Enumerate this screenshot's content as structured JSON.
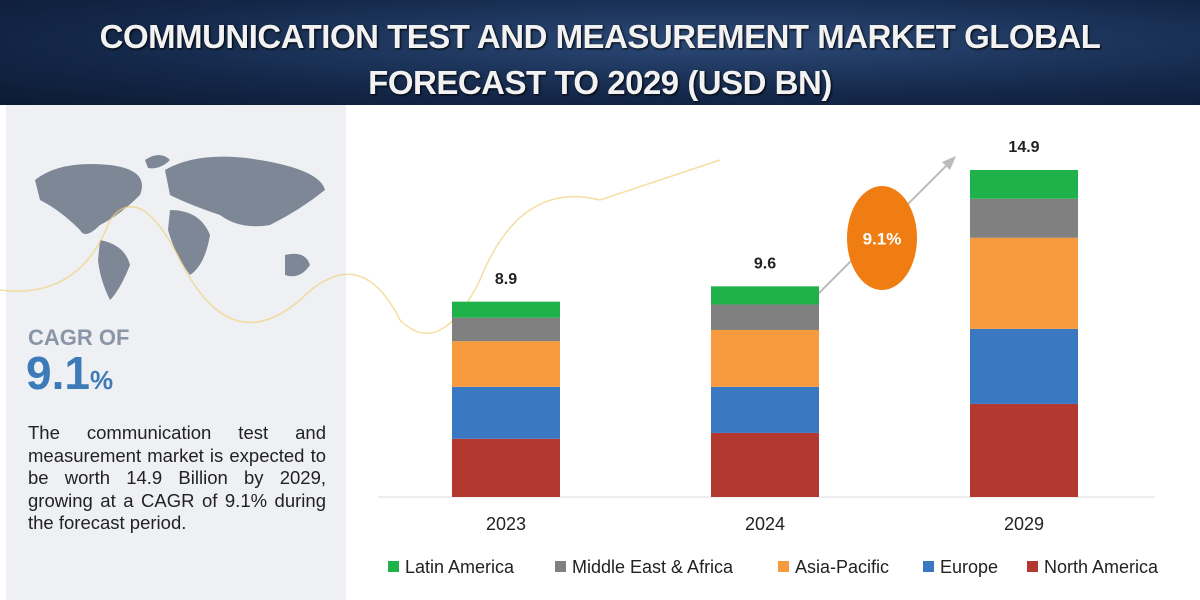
{
  "title_line1": "COMMUNICATION TEST AND MEASUREMENT MARKET GLOBAL",
  "title_line2": "FORECAST TO 2029 (USD BN)",
  "cagr_label": "CAGR OF",
  "cagr_value": "9.1",
  "cagr_unit": "%",
  "description": "The communication test and measurement market is expected to be worth 14.9 Billion by 2029, growing at a CAGR of 9.1% during the forecast period.",
  "chart_data": {
    "type": "stacked_bar",
    "categories": [
      "2023",
      "2024",
      "2029"
    ],
    "totals": [
      8.9,
      9.6,
      14.9
    ],
    "cagr_bubble": "9.1%",
    "series": [
      {
        "name": "North America",
        "color": "#b3382f",
        "values": [
          2.65,
          2.92,
          4.24
        ]
      },
      {
        "name": "Europe",
        "color": "#3a78c2",
        "values": [
          2.37,
          2.1,
          3.42
        ]
      },
      {
        "name": "Asia-Pacific",
        "color": "#f79a3e",
        "values": [
          2.08,
          2.59,
          4.15
        ]
      },
      {
        "name": "Middle East & Africa",
        "color": "#808080",
        "values": [
          1.07,
          1.16,
          1.78
        ]
      },
      {
        "name": "Latin America",
        "color": "#1fb24a",
        "values": [
          0.73,
          0.83,
          1.31
        ]
      }
    ]
  }
}
